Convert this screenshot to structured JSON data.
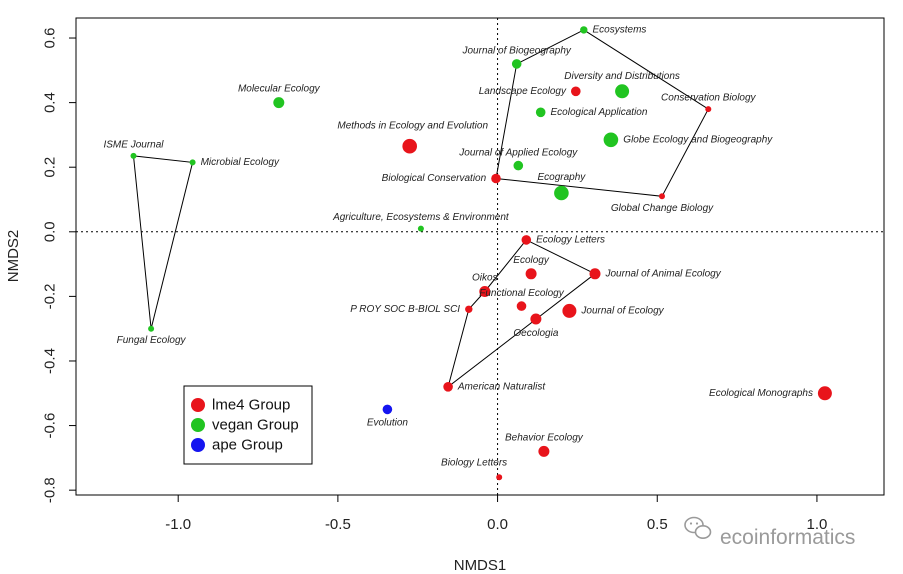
{
  "chart_data": {
    "type": "scatter",
    "title": "",
    "xlabel": "NMDS1",
    "ylabel": "NMDS2",
    "xlim": [
      -1.32,
      1.21
    ],
    "ylim": [
      -0.815,
      0.662
    ],
    "xticks": [
      -1.0,
      -0.5,
      0.0,
      0.5,
      1.0
    ],
    "xtick_labels": [
      "-1.0",
      "-0.5",
      "0.0",
      "0.5",
      "1.0"
    ],
    "yticks": [
      -0.8,
      -0.6,
      -0.4,
      -0.2,
      0.0,
      0.2,
      0.4,
      0.6
    ],
    "ytick_labels": [
      "-0.8",
      "-0.6",
      "-0.4",
      "-0.2",
      "0.0",
      "0.2",
      "0.4",
      "0.6"
    ],
    "reference_lines": {
      "x": 0,
      "y": 0,
      "style": "dotted"
    },
    "group_colors": {
      "lme4": "#e8141b",
      "vegan": "#21c421",
      "ape": "#1515f0"
    },
    "points": [
      {
        "name": "Ecosystems",
        "x": 0.27,
        "y": 0.625,
        "group": "vegan",
        "size": 1.0,
        "label_pos": "right"
      },
      {
        "name": "Journal of Biogeography",
        "x": 0.06,
        "y": 0.52,
        "group": "vegan",
        "size": 1.3,
        "label_pos": "above"
      },
      {
        "name": "Diversity and Distributions",
        "x": 0.39,
        "y": 0.435,
        "group": "vegan",
        "size": 1.9,
        "label_pos": "above"
      },
      {
        "name": "Landscape Ecology",
        "x": 0.245,
        "y": 0.435,
        "group": "lme4",
        "size": 1.3,
        "label_pos": "left"
      },
      {
        "name": "Conservation Biology",
        "x": 0.66,
        "y": 0.38,
        "group": "lme4",
        "size": 0.8,
        "label_pos": "above"
      },
      {
        "name": "Molecular Ecology",
        "x": -0.685,
        "y": 0.4,
        "group": "vegan",
        "size": 1.5,
        "label_pos": "above"
      },
      {
        "name": "Ecological Application",
        "x": 0.135,
        "y": 0.37,
        "group": "vegan",
        "size": 1.3,
        "label_pos": "right"
      },
      {
        "name": "Globe Ecology and Biogeography",
        "x": 0.355,
        "y": 0.285,
        "group": "vegan",
        "size": 2.0,
        "label_pos": "right"
      },
      {
        "name": "Methods in Ecology and Evolution",
        "x": -0.275,
        "y": 0.265,
        "group": "lme4",
        "size": 2.0,
        "label_pos": "right-above"
      },
      {
        "name": "ISME Journal",
        "x": -1.14,
        "y": 0.235,
        "group": "vegan",
        "size": 0.8,
        "label_pos": "above"
      },
      {
        "name": "Microbial Ecology",
        "x": -0.955,
        "y": 0.215,
        "group": "vegan",
        "size": 0.8,
        "label_pos": "right"
      },
      {
        "name": "Journal of Applied Ecology",
        "x": 0.065,
        "y": 0.205,
        "group": "vegan",
        "size": 1.3,
        "label_pos": "above"
      },
      {
        "name": "Biological Conservation",
        "x": -0.005,
        "y": 0.165,
        "group": "lme4",
        "size": 1.3,
        "label_pos": "left"
      },
      {
        "name": "Ecography",
        "x": 0.2,
        "y": 0.12,
        "group": "vegan",
        "size": 2.0,
        "label_pos": "above"
      },
      {
        "name": "Global Change Biology",
        "x": 0.515,
        "y": 0.11,
        "group": "lme4",
        "size": 0.8,
        "label_pos": "below"
      },
      {
        "name": "Agriculture, Ecosystems & Environment",
        "x": -0.24,
        "y": 0.01,
        "group": "vegan",
        "size": 0.8,
        "label_pos": "above"
      },
      {
        "name": "Ecology Letters",
        "x": 0.09,
        "y": -0.025,
        "group": "lme4",
        "size": 1.3,
        "label_pos": "right"
      },
      {
        "name": "Ecology",
        "x": 0.105,
        "y": -0.13,
        "group": "lme4",
        "size": 1.5,
        "label_pos": "above"
      },
      {
        "name": "Journal of Animal Ecology",
        "x": 0.305,
        "y": -0.13,
        "group": "lme4",
        "size": 1.5,
        "label_pos": "right"
      },
      {
        "name": "Oikos",
        "x": -0.04,
        "y": -0.185,
        "group": "lme4",
        "size": 1.5,
        "label_pos": "above"
      },
      {
        "name": "Functional Ecology",
        "x": 0.075,
        "y": -0.23,
        "group": "lme4",
        "size": 1.3,
        "label_pos": "above"
      },
      {
        "name": "P ROY SOC B-BIOL SCI",
        "x": -0.09,
        "y": -0.24,
        "group": "lme4",
        "size": 1.0,
        "label_pos": "left"
      },
      {
        "name": "Journal of Ecology",
        "x": 0.225,
        "y": -0.245,
        "group": "lme4",
        "size": 1.9,
        "label_pos": "right"
      },
      {
        "name": "Oecologia",
        "x": 0.12,
        "y": -0.27,
        "group": "lme4",
        "size": 1.5,
        "label_pos": "below"
      },
      {
        "name": "Fungal Ecology",
        "x": -1.085,
        "y": -0.3,
        "group": "vegan",
        "size": 0.8,
        "label_pos": "below"
      },
      {
        "name": "American Naturalist",
        "x": -0.155,
        "y": -0.48,
        "group": "lme4",
        "size": 1.3,
        "label_pos": "right"
      },
      {
        "name": "Ecological Monographs",
        "x": 1.025,
        "y": -0.5,
        "group": "lme4",
        "size": 1.9,
        "label_pos": "left"
      },
      {
        "name": "Evolution",
        "x": -0.345,
        "y": -0.55,
        "group": "ape",
        "size": 1.3,
        "label_pos": "below"
      },
      {
        "name": "Behavior Ecology",
        "x": 0.145,
        "y": -0.68,
        "group": "lme4",
        "size": 1.5,
        "label_pos": "above"
      },
      {
        "name": "Biology Letters",
        "x": 0.005,
        "y": -0.76,
        "group": "lme4",
        "size": 0.8,
        "label_pos": "left-above"
      }
    ],
    "hulls": [
      [
        "Ecosystems",
        "Conservation Biology",
        "Global Change Biology",
        "Biological Conservation",
        "Journal of Biogeography"
      ],
      [
        "ISME Journal",
        "Microbial Ecology",
        "Fungal Ecology"
      ],
      [
        "Ecology Letters",
        "Journal of Animal Ecology",
        "American Naturalist",
        "P ROY SOC B-BIOL SCI",
        "Oikos"
      ]
    ],
    "legend": {
      "position": "bottom-left",
      "entries": [
        {
          "label": "lme4 Group",
          "group": "lme4"
        },
        {
          "label": "vegan Group",
          "group": "vegan"
        },
        {
          "label": "ape Group",
          "group": "ape"
        }
      ]
    }
  },
  "watermark": {
    "text": "ecoinformatics",
    "icon": "wechat-icon"
  }
}
